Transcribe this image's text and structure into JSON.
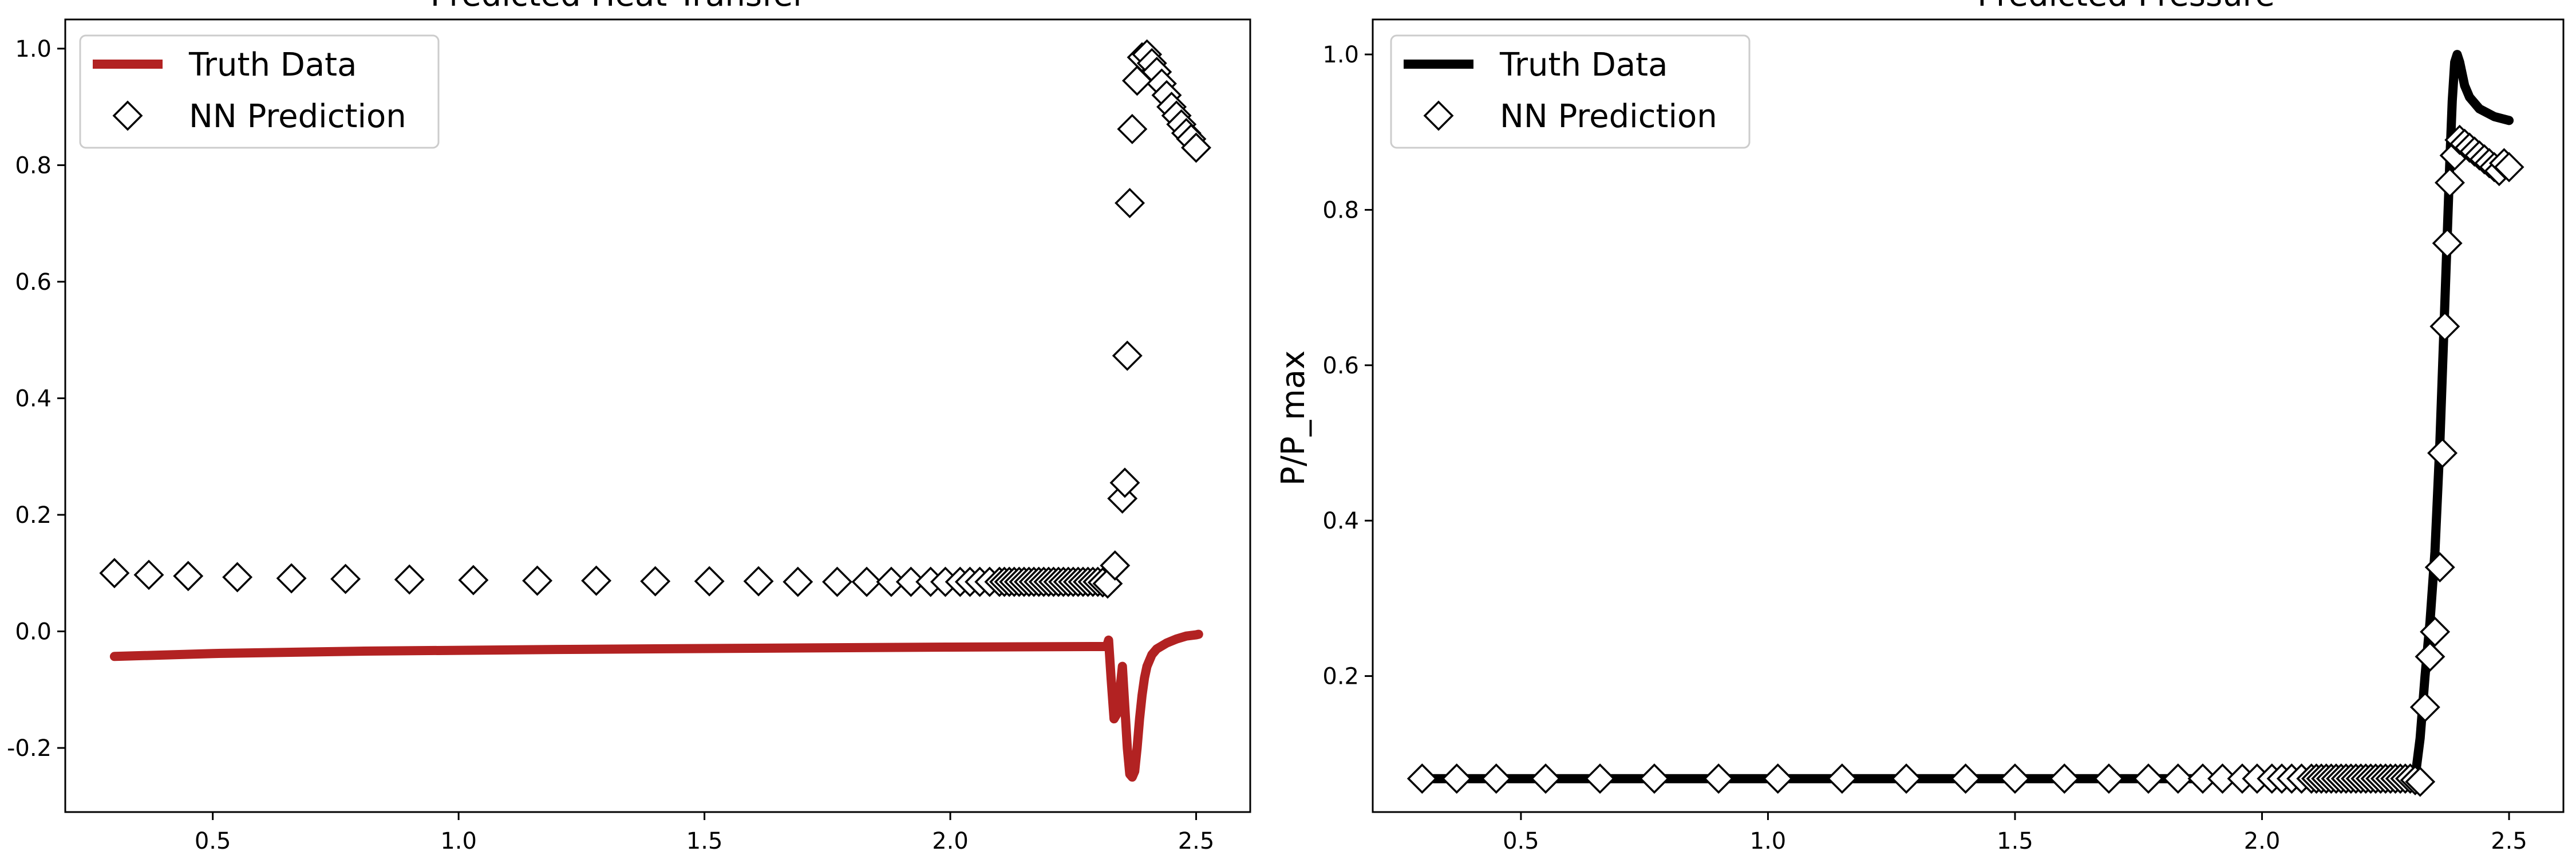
{
  "chart_data": [
    {
      "type": "line",
      "title": "Predicted Heat Transfer",
      "xlabel": "",
      "ylabel": "",
      "xlim": [
        0.2,
        2.61
      ],
      "ylim": [
        -0.31,
        1.05
      ],
      "xticks": [
        "0.5",
        "1.0",
        "1.5",
        "2.0",
        "2.5"
      ],
      "yticks": [
        "-0.2",
        "0.0",
        "0.2",
        "0.4",
        "0.6",
        "0.8",
        "1.0"
      ],
      "xtick_values": [
        0.5,
        1.0,
        1.5,
        2.0,
        2.5
      ],
      "ytick_values": [
        -0.2,
        0.0,
        0.2,
        0.4,
        0.6,
        0.8,
        1.0
      ],
      "grid": false,
      "legend_position": "upper left",
      "series": [
        {
          "name": "Truth Data",
          "style": "line",
          "color": "#b22222",
          "x": [
            0.3,
            0.5,
            0.8,
            1.2,
            1.6,
            2.0,
            2.3,
            2.318,
            2.322,
            2.327,
            2.333,
            2.34,
            2.345,
            2.35,
            2.355,
            2.36,
            2.365,
            2.37,
            2.375,
            2.38,
            2.385,
            2.39,
            2.395,
            2.4,
            2.41,
            2.42,
            2.44,
            2.46,
            2.48,
            2.5,
            2.505
          ],
          "y": [
            -0.043,
            -0.038,
            -0.034,
            -0.031,
            -0.029,
            -0.027,
            -0.026,
            -0.026,
            -0.015,
            -0.08,
            -0.15,
            -0.14,
            -0.1,
            -0.06,
            -0.13,
            -0.2,
            -0.245,
            -0.25,
            -0.24,
            -0.2,
            -0.15,
            -0.11,
            -0.08,
            -0.06,
            -0.04,
            -0.03,
            -0.02,
            -0.013,
            -0.008,
            -0.006,
            -0.005
          ]
        },
        {
          "name": "NN Prediction",
          "style": "marker",
          "marker": "diamond",
          "x": [
            0.3,
            0.37,
            0.45,
            0.55,
            0.66,
            0.77,
            0.9,
            1.03,
            1.16,
            1.28,
            1.4,
            1.51,
            1.61,
            1.69,
            1.77,
            1.83,
            1.88,
            1.92,
            1.96,
            1.99,
            2.02,
            2.04,
            2.06,
            2.08,
            2.1,
            2.11,
            2.12,
            2.13,
            2.14,
            2.15,
            2.16,
            2.17,
            2.18,
            2.19,
            2.2,
            2.21,
            2.22,
            2.23,
            2.24,
            2.25,
            2.26,
            2.27,
            2.28,
            2.29,
            2.3,
            2.31,
            2.32,
            2.335,
            2.35,
            2.355,
            2.36,
            2.365,
            2.37,
            2.38,
            2.39,
            2.4,
            2.41,
            2.42,
            2.43,
            2.44,
            2.45,
            2.46,
            2.47,
            2.48,
            2.49,
            2.5
          ],
          "y": [
            0.1,
            0.097,
            0.095,
            0.093,
            0.091,
            0.09,
            0.089,
            0.088,
            0.087,
            0.087,
            0.086,
            0.086,
            0.086,
            0.085,
            0.085,
            0.085,
            0.085,
            0.085,
            0.085,
            0.085,
            0.085,
            0.085,
            0.085,
            0.085,
            0.085,
            0.085,
            0.085,
            0.085,
            0.085,
            0.085,
            0.085,
            0.085,
            0.085,
            0.085,
            0.085,
            0.085,
            0.085,
            0.085,
            0.085,
            0.085,
            0.085,
            0.085,
            0.085,
            0.085,
            0.085,
            0.084,
            0.082,
            0.113,
            0.228,
            0.255,
            0.473,
            0.735,
            0.862,
            0.945,
            0.985,
            0.99,
            0.975,
            0.96,
            0.94,
            0.92,
            0.9,
            0.885,
            0.87,
            0.855,
            0.845,
            0.83
          ]
        }
      ]
    },
    {
      "type": "line",
      "title": "Predicted Pressure",
      "xlabel": "",
      "ylabel": "P/P_max",
      "xlim": [
        0.2,
        2.61
      ],
      "ylim": [
        0.025,
        1.045
      ],
      "xticks": [
        "0.5",
        "1.0",
        "1.5",
        "2.0",
        "2.5"
      ],
      "yticks": [
        "0.2",
        "0.4",
        "0.6",
        "0.8",
        "1.0"
      ],
      "xtick_values": [
        0.5,
        1.0,
        1.5,
        2.0,
        2.5
      ],
      "ytick_values": [
        0.2,
        0.4,
        0.6,
        0.8,
        1.0
      ],
      "grid": false,
      "legend_position": "upper left",
      "series": [
        {
          "name": "Truth Data",
          "style": "line",
          "color": "#000000",
          "x": [
            0.3,
            0.8,
            1.4,
            2.0,
            2.3,
            2.31,
            2.32,
            2.33,
            2.34,
            2.35,
            2.36,
            2.37,
            2.38,
            2.385,
            2.39,
            2.395,
            2.4,
            2.41,
            2.42,
            2.44,
            2.47,
            2.5
          ],
          "y": [
            0.068,
            0.068,
            0.068,
            0.068,
            0.068,
            0.07,
            0.12,
            0.2,
            0.27,
            0.36,
            0.5,
            0.68,
            0.86,
            0.94,
            0.99,
            1.0,
            0.99,
            0.96,
            0.945,
            0.93,
            0.92,
            0.915
          ]
        },
        {
          "name": "NN Prediction",
          "style": "marker",
          "marker": "diamond",
          "x": [
            0.3,
            0.37,
            0.45,
            0.55,
            0.66,
            0.77,
            0.9,
            1.02,
            1.15,
            1.28,
            1.4,
            1.5,
            1.6,
            1.69,
            1.77,
            1.83,
            1.88,
            1.92,
            1.96,
            1.99,
            2.02,
            2.04,
            2.06,
            2.08,
            2.1,
            2.11,
            2.12,
            2.13,
            2.14,
            2.15,
            2.16,
            2.17,
            2.18,
            2.19,
            2.2,
            2.21,
            2.22,
            2.23,
            2.24,
            2.25,
            2.26,
            2.27,
            2.28,
            2.29,
            2.3,
            2.31,
            2.32,
            2.33,
            2.34,
            2.35,
            2.36,
            2.365,
            2.37,
            2.375,
            2.38,
            2.39,
            2.4,
            2.41,
            2.42,
            2.43,
            2.44,
            2.45,
            2.46,
            2.47,
            2.48,
            2.49,
            2.5
          ],
          "y": [
            0.068,
            0.068,
            0.068,
            0.068,
            0.068,
            0.068,
            0.068,
            0.068,
            0.068,
            0.068,
            0.068,
            0.068,
            0.068,
            0.068,
            0.068,
            0.068,
            0.068,
            0.068,
            0.068,
            0.068,
            0.068,
            0.068,
            0.068,
            0.068,
            0.068,
            0.068,
            0.068,
            0.068,
            0.068,
            0.068,
            0.068,
            0.068,
            0.068,
            0.068,
            0.068,
            0.068,
            0.068,
            0.068,
            0.068,
            0.068,
            0.068,
            0.068,
            0.068,
            0.068,
            0.068,
            0.066,
            0.064,
            0.16,
            0.225,
            0.257,
            0.34,
            0.487,
            0.65,
            0.757,
            0.835,
            0.87,
            0.89,
            0.885,
            0.88,
            0.875,
            0.87,
            0.865,
            0.86,
            0.855,
            0.85,
            0.86,
            0.855
          ]
        }
      ]
    }
  ]
}
